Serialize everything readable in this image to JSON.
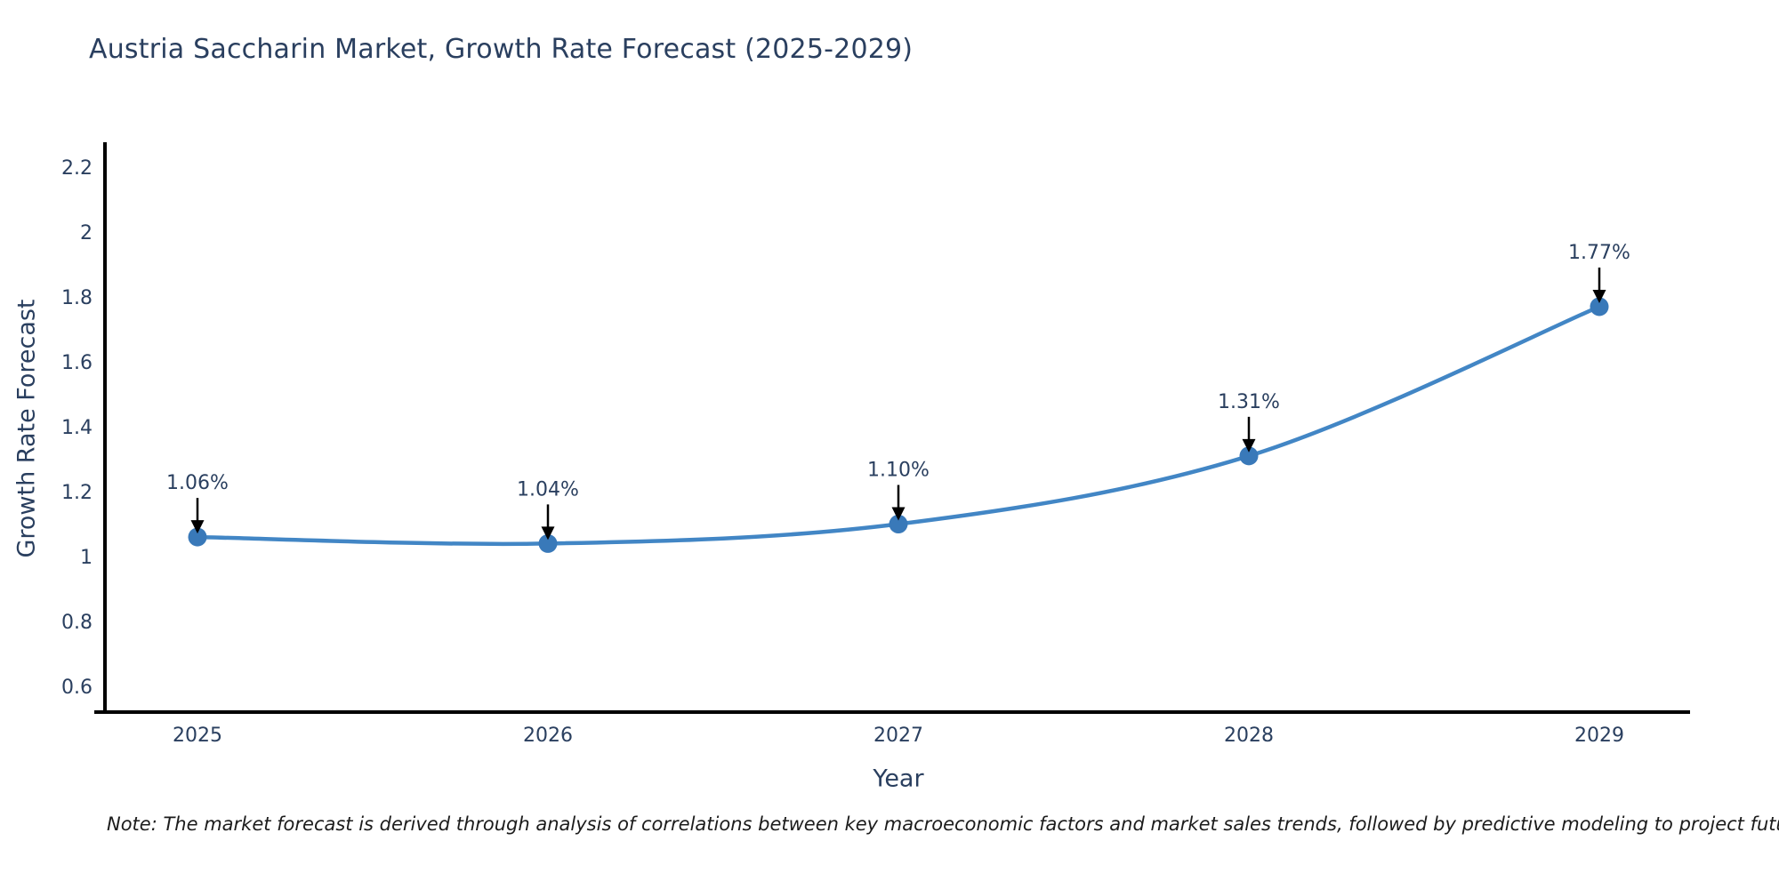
{
  "title": "Austria Saccharin Market, Growth Rate Forecast (2025-2029)",
  "note": "Note: The market forecast is derived through analysis of correlations between key macroeconomic factors and market sales trends, followed by predictive modeling to project future sales",
  "chart_data": {
    "type": "line",
    "title": "Austria Saccharin Market, Growth Rate Forecast (2025-2029)",
    "xlabel": "Year",
    "ylabel": "Growth Rate Forecast",
    "categories": [
      "2025",
      "2026",
      "2027",
      "2028",
      "2029"
    ],
    "series": [
      {
        "name": "Growth Rate Forecast",
        "values": [
          1.06,
          1.04,
          1.1,
          1.31,
          1.77
        ],
        "point_labels": [
          "1.06%",
          "1.04%",
          "1.10%",
          "1.31%",
          "1.77%"
        ]
      }
    ],
    "yticks": [
      0.6,
      0.8,
      1,
      1.2,
      1.4,
      1.6,
      1.8,
      2,
      2.2
    ],
    "ytick_labels": [
      "0.6",
      "0.8",
      "1",
      "1.2",
      "1.4",
      "1.6",
      "1.8",
      "2",
      "2.2"
    ],
    "ylim": [
      0.52,
      2.27
    ],
    "grid": false,
    "legend_position": "none",
    "marker_style": "circle-with-down-arrow-annotation",
    "colors": {
      "line": "#4286c5",
      "marker": "#3979b9",
      "axis": "#000000",
      "tick_text": "#2a3f5f",
      "annotation_text": "#2a3f5f",
      "arrow": "#000000",
      "title_text": "#2a3f5f",
      "note_text": "#1c1c1c",
      "background": "#ffffff"
    }
  }
}
